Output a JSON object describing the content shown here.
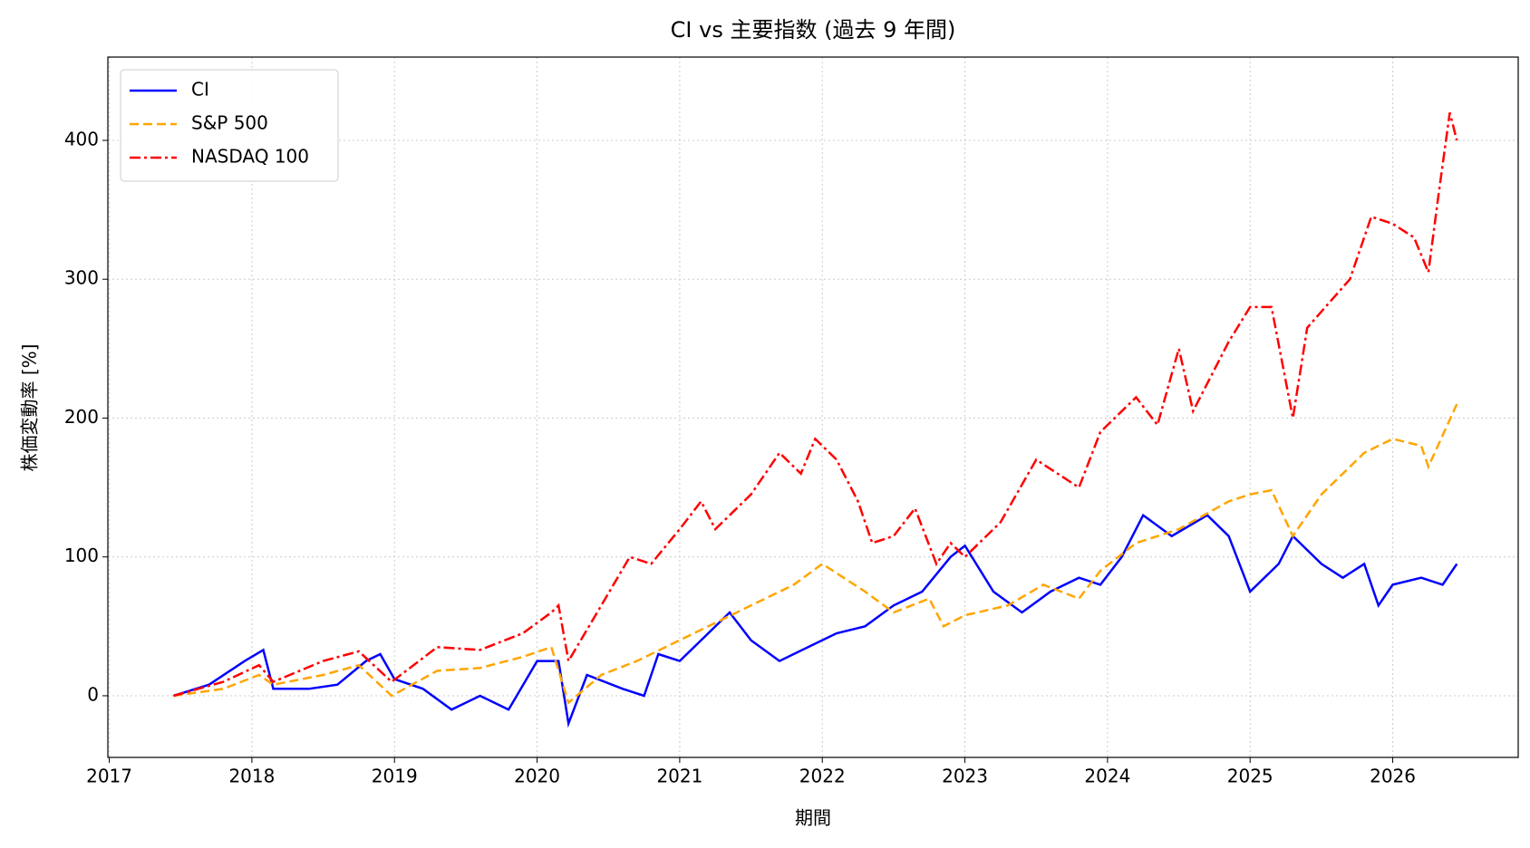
{
  "chart_data": {
    "type": "line",
    "title": "CI vs 主要指数 (過去 9 年間)",
    "x_label": "期間",
    "y_label": "株価変動率 [%]",
    "xlim": [
      2016.99,
      2026.88
    ],
    "xticks": [
      2017,
      2018,
      2019,
      2020,
      2021,
      2022,
      2023,
      2024,
      2025,
      2026
    ],
    "ylim": [
      -44.4,
      460
    ],
    "yticks": [
      0,
      100,
      200,
      300,
      400
    ],
    "grid": true,
    "legend": "upper left",
    "series": [
      {
        "name": "CI",
        "color": "#0000ff",
        "dash": "solid",
        "x": [
          2017.45,
          2017.7,
          2017.95,
          2018.08,
          2018.15,
          2018.4,
          2018.6,
          2018.8,
          2018.9,
          2019.0,
          2019.2,
          2019.4,
          2019.6,
          2019.8,
          2020.0,
          2020.15,
          2020.22,
          2020.35,
          2020.6,
          2020.75,
          2020.85,
          2021.0,
          2021.2,
          2021.35,
          2021.5,
          2021.7,
          2021.9,
          2022.1,
          2022.3,
          2022.5,
          2022.7,
          2022.9,
          2023.0,
          2023.2,
          2023.4,
          2023.6,
          2023.8,
          2023.95,
          2024.1,
          2024.25,
          2024.45,
          2024.7,
          2024.85,
          2025.0,
          2025.2,
          2025.3,
          2025.5,
          2025.65,
          2025.8,
          2025.9,
          2026.0,
          2026.2,
          2026.35,
          2026.45
        ],
        "values": [
          0,
          8,
          25,
          33,
          5,
          5,
          8,
          25,
          30,
          12,
          5,
          -10,
          0,
          -10,
          25,
          25,
          -20,
          15,
          5,
          0,
          30,
          25,
          45,
          60,
          40,
          25,
          35,
          45,
          50,
          65,
          75,
          100,
          108,
          75,
          60,
          75,
          85,
          80,
          100,
          130,
          115,
          130,
          115,
          75,
          95,
          115,
          95,
          85,
          95,
          65,
          80,
          85,
          80,
          95
        ]
      },
      {
        "name": "S&P 500",
        "color": "#ffa500",
        "dash": "dashed",
        "x": [
          2017.45,
          2017.8,
          2018.05,
          2018.15,
          2018.5,
          2018.75,
          2018.98,
          2019.3,
          2019.6,
          2019.9,
          2020.1,
          2020.22,
          2020.45,
          2020.7,
          2020.9,
          2021.2,
          2021.5,
          2021.8,
          2022.0,
          2022.3,
          2022.5,
          2022.75,
          2022.85,
          2023.0,
          2023.3,
          2023.55,
          2023.8,
          2023.95,
          2024.2,
          2024.5,
          2024.85,
          2025.0,
          2025.15,
          2025.3,
          2025.5,
          2025.8,
          2026.0,
          2026.2,
          2026.25,
          2026.45
        ],
        "values": [
          0,
          5,
          15,
          8,
          15,
          22,
          0,
          18,
          20,
          28,
          35,
          -5,
          15,
          25,
          35,
          50,
          65,
          80,
          95,
          75,
          60,
          70,
          50,
          58,
          65,
          80,
          70,
          90,
          110,
          120,
          140,
          145,
          148,
          115,
          145,
          175,
          185,
          180,
          165,
          210
        ]
      },
      {
        "name": "NASDAQ 100",
        "color": "#ff0000",
        "dash": "dashdot",
        "x": [
          2017.45,
          2017.8,
          2018.05,
          2018.15,
          2018.5,
          2018.75,
          2018.98,
          2019.3,
          2019.6,
          2019.9,
          2020.1,
          2020.15,
          2020.22,
          2020.45,
          2020.65,
          2020.8,
          2021.0,
          2021.15,
          2021.25,
          2021.5,
          2021.7,
          2021.85,
          2021.95,
          2022.1,
          2022.25,
          2022.35,
          2022.5,
          2022.65,
          2022.8,
          2022.9,
          2023.0,
          2023.25,
          2023.5,
          2023.8,
          2023.95,
          2024.2,
          2024.35,
          2024.5,
          2024.6,
          2024.85,
          2025.0,
          2025.15,
          2025.3,
          2025.4,
          2025.7,
          2025.85,
          2026.0,
          2026.15,
          2026.25,
          2026.32,
          2026.4,
          2026.45
        ],
        "values": [
          0,
          10,
          22,
          10,
          25,
          32,
          10,
          35,
          33,
          45,
          60,
          65,
          25,
          65,
          100,
          95,
          120,
          140,
          120,
          145,
          175,
          160,
          185,
          170,
          140,
          110,
          115,
          135,
          95,
          110,
          100,
          125,
          170,
          150,
          190,
          215,
          195,
          250,
          205,
          255,
          280,
          280,
          200,
          265,
          300,
          345,
          340,
          330,
          305,
          360,
          420,
          400
        ]
      }
    ]
  }
}
